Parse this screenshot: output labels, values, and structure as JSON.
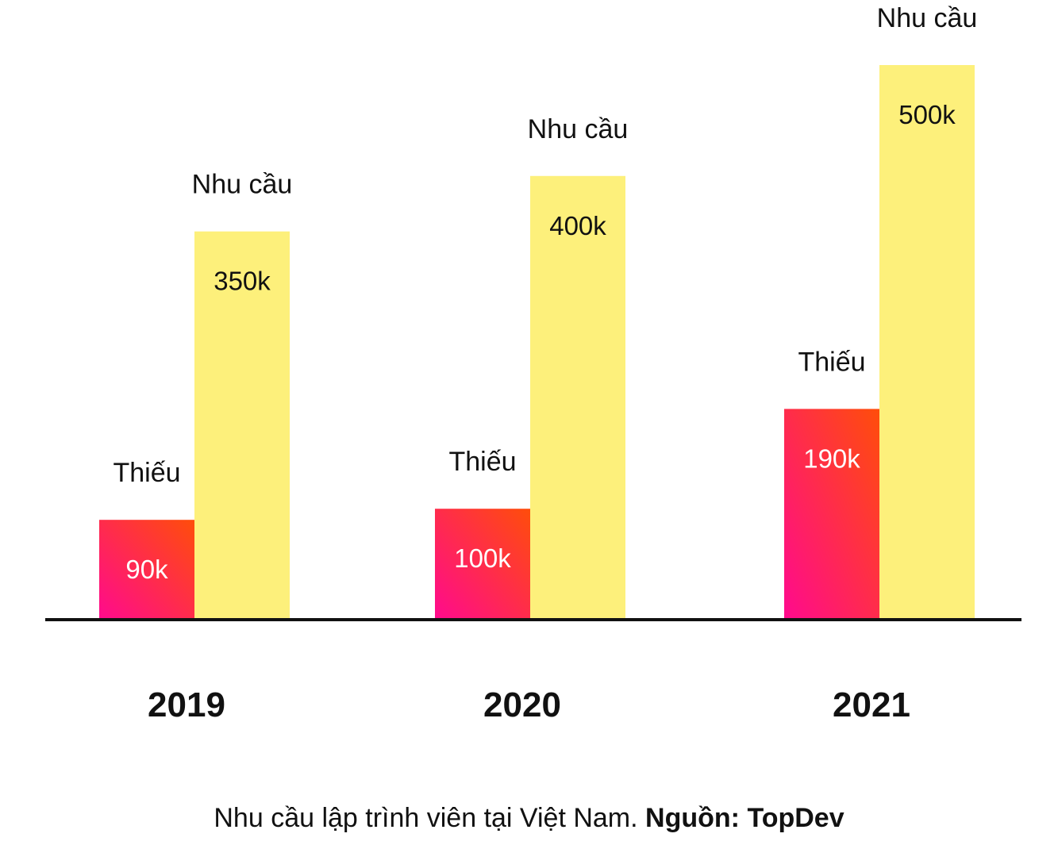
{
  "chart_data": {
    "type": "bar",
    "categories": [
      "2019",
      "2020",
      "2021"
    ],
    "series": [
      {
        "name": "Thiếu",
        "values": [
          90,
          100,
          190
        ],
        "labels": [
          "90k",
          "100k",
          "190k"
        ],
        "color_start": "#ff0a8e",
        "color_end": "#ff4d0a"
      },
      {
        "name": "Nhu cầu",
        "values": [
          350,
          400,
          500
        ],
        "labels": [
          "350k",
          "400k",
          "500k"
        ],
        "color": "#fdf07b"
      }
    ],
    "value_unit": "k",
    "grid": false,
    "legend": "none",
    "baseline_color": "#111111"
  },
  "caption": {
    "text": "Nhu cầu lập trình viên tại Việt Nam.",
    "source": "Nguồn: TopDev"
  }
}
